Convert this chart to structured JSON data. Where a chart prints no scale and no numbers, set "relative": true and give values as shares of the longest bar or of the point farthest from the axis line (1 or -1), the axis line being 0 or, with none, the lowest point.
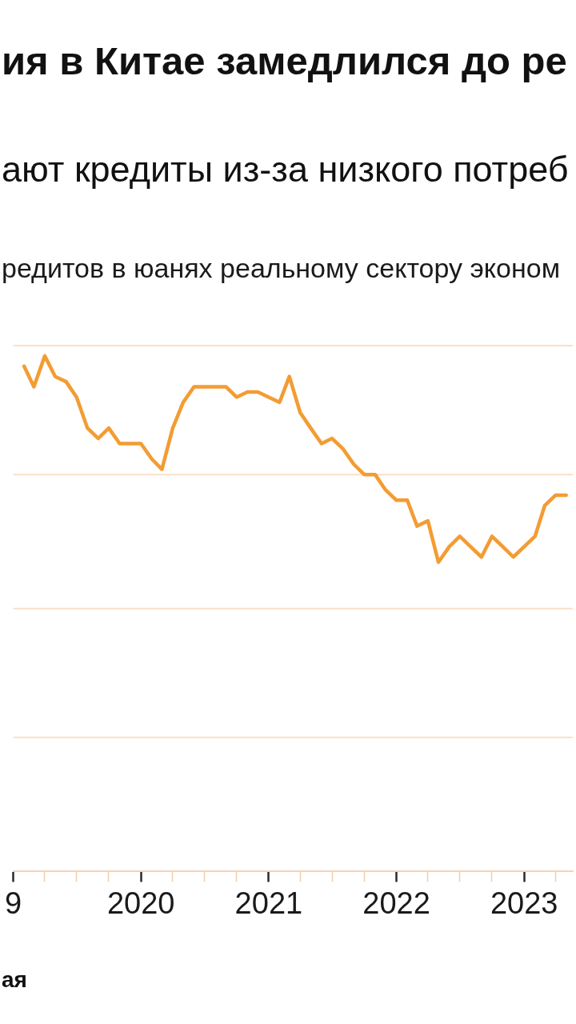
{
  "chart_data": {
    "type": "line",
    "title": "ия в Китае замедлился до ре",
    "subtitle": "ают кредиты из-за низкого потреб",
    "ylabel": "редитов в юанях реальному сектору эконом",
    "annotations": [
      "ая"
    ],
    "x": [
      "2019-02",
      "2019-03",
      "2019-04",
      "2019-05",
      "2019-06",
      "2019-07",
      "2019-08",
      "2019-09",
      "2019-10",
      "2019-11",
      "2019-12",
      "2020-01",
      "2020-02",
      "2020-03",
      "2020-04",
      "2020-05",
      "2020-06",
      "2020-07",
      "2020-08",
      "2020-09",
      "2020-10",
      "2020-11",
      "2020-12",
      "2021-01",
      "2021-02",
      "2021-03",
      "2021-04",
      "2021-05",
      "2021-06",
      "2021-07",
      "2021-08",
      "2021-09",
      "2021-10",
      "2021-11",
      "2021-12",
      "2022-01",
      "2022-02",
      "2022-03",
      "2022-04",
      "2022-05",
      "2022-06",
      "2022-07",
      "2022-08",
      "2022-09",
      "2022-10",
      "2022-11",
      "2022-12",
      "2023-01",
      "2023-02",
      "2023-03",
      "2023-04",
      "2023-05"
    ],
    "values": [
      0.98,
      0.94,
      1,
      0.96,
      0.95,
      0.92,
      0.86,
      0.84,
      0.86,
      0.83,
      0.83,
      0.83,
      0.8,
      0.78,
      0.86,
      0.91,
      0.94,
      0.94,
      0.94,
      0.94,
      0.92,
      0.93,
      0.93,
      0.92,
      0.91,
      0.96,
      0.89,
      0.86,
      0.83,
      0.84,
      0.82,
      0.79,
      0.77,
      0.77,
      0.74,
      0.72,
      0.72,
      0.67,
      0.68,
      0.6,
      0.63,
      0.65,
      0.63,
      0.61,
      0.65,
      0.63,
      0.61,
      0.63,
      0.65,
      0.71,
      0.73,
      0.73
    ],
    "color": "#f39c33",
    "relative": true,
    "xlim": [
      "2019",
      "2023-05-20"
    ],
    "xticks": [
      {
        "value": "2019",
        "label": "9"
      },
      {
        "value": "2019-04",
        "label": null
      },
      {
        "value": "2019-07",
        "label": null
      },
      {
        "value": "2019-10",
        "label": null
      },
      "2020",
      {
        "value": "2020-04",
        "label": null
      },
      {
        "value": "2020-07",
        "label": null
      },
      {
        "value": "2020-10",
        "label": null
      },
      "2021",
      {
        "value": "2021-04",
        "label": null
      },
      {
        "value": "2021-07",
        "label": null
      },
      {
        "value": "2021-10",
        "label": null
      },
      "2022",
      {
        "value": "2022-04",
        "label": null
      },
      {
        "value": "2022-07",
        "label": null
      },
      {
        "value": "2022-10",
        "label": null
      },
      "2023",
      {
        "value": "2023-04",
        "label": null
      }
    ],
    "ref_lines": [
      {
        "axis": "y",
        "value": 0.26,
        "color": "#fbe0c8"
      },
      {
        "axis": "y",
        "value": 0.51,
        "color": "#fbe0c8"
      },
      {
        "axis": "y",
        "value": 0.77,
        "color": "#fbe0c8"
      },
      {
        "axis": "y",
        "value": 1.02,
        "color": "#fbe0c8"
      }
    ]
  }
}
